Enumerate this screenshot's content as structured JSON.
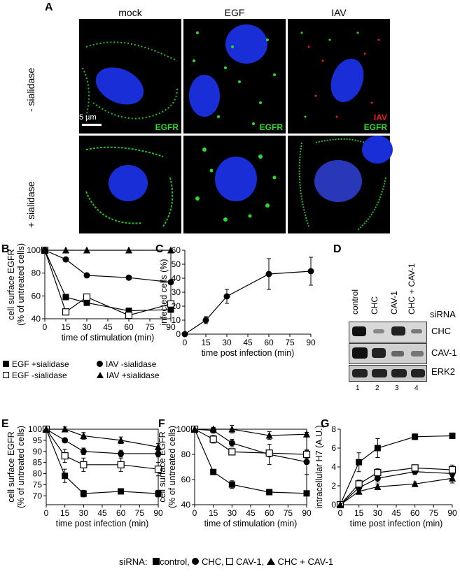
{
  "panel_a": {
    "letter": "A",
    "columns": [
      "mock",
      "EGF",
      "IAV"
    ],
    "rows": [
      "- sialidase",
      "+ sialidase"
    ],
    "scale_bar": "5 µm",
    "tags": {
      "egfr": "EGFR",
      "iav": "IAV"
    }
  },
  "panel_b": {
    "letter": "B"
  },
  "panel_c": {
    "letter": "C"
  },
  "panel_d": {
    "letter": "D",
    "lanes": [
      "control",
      "CHC",
      "CAV-1",
      "CHC + CAV-1"
    ],
    "lane_numbers": [
      "1",
      "2",
      "3",
      "4"
    ],
    "sirna_label": "siRNA",
    "bands": [
      "CHC",
      "CAV-1",
      "ERK2"
    ]
  },
  "panel_e": {
    "letter": "E"
  },
  "panel_f": {
    "letter": "F"
  },
  "panel_g": {
    "letter": "G"
  },
  "legend_b": {
    "egf_plus": "EGF +sialidase",
    "egf_minus": "EGF -sialidase",
    "iav_minus": "IAV -sialidase",
    "iav_plus": "IAV +sialidase"
  },
  "bottom_legend": {
    "prefix": "siRNA:",
    "control": "control,",
    "chc": "CHC,",
    "cav": "CAV-1,",
    "both": "CHC + CAV-1"
  },
  "chart_data": [
    {
      "id": "B",
      "type": "line",
      "xlabel": "time of stimulation (min)",
      "ylabel": "cell surface EGFR (% of untreated cells)",
      "xticks": [
        0,
        15,
        30,
        45,
        60,
        75,
        90
      ],
      "yticks": [
        40,
        60,
        80,
        100
      ],
      "xlim": [
        0,
        90
      ],
      "ylim": [
        40,
        100
      ],
      "series": [
        {
          "name": "EGF +sialidase",
          "marker": "square-filled",
          "x": [
            0,
            15,
            30,
            60,
            90
          ],
          "y": [
            100,
            59,
            54,
            47,
            48
          ]
        },
        {
          "name": "EGF -sialidase",
          "marker": "square-open",
          "x": [
            0,
            15,
            30,
            60,
            90
          ],
          "y": [
            100,
            46,
            59,
            43,
            53
          ]
        },
        {
          "name": "IAV -sialidase",
          "marker": "circle-filled",
          "x": [
            0,
            15,
            30,
            60,
            90
          ],
          "y": [
            100,
            92,
            78,
            76,
            72
          ]
        },
        {
          "name": "IAV +sialidase",
          "marker": "triangle-filled",
          "x": [
            0,
            15,
            30,
            60,
            90
          ],
          "y": [
            100,
            100,
            100,
            100,
            100
          ]
        }
      ]
    },
    {
      "id": "C",
      "type": "line",
      "xlabel": "time post infection (min)",
      "ylabel": "infected cells (%)",
      "xticks": [
        0,
        15,
        30,
        45,
        60,
        75,
        90
      ],
      "yticks": [
        0,
        10,
        20,
        30,
        40,
        50,
        60
      ],
      "xlim": [
        0,
        90
      ],
      "ylim": [
        0,
        60
      ],
      "series": [
        {
          "marker": "circle-filled",
          "x": [
            0,
            15,
            30,
            60,
            90
          ],
          "y": [
            0,
            10,
            27,
            43,
            45
          ],
          "err": [
            0,
            2.5,
            5,
            11,
            10
          ]
        }
      ]
    },
    {
      "id": "E",
      "type": "line",
      "xlabel": "time post infection (min)",
      "ylabel": "cell surface EGFR (% of untreated cells)",
      "xticks": [
        0,
        15,
        30,
        45,
        60,
        75,
        90
      ],
      "yticks": [
        70,
        75,
        80,
        85,
        90,
        95,
        100
      ],
      "xlim": [
        0,
        90
      ],
      "ylim": [
        66,
        100
      ],
      "series": [
        {
          "name": "control",
          "marker": "square-filled",
          "x": [
            0,
            15,
            30,
            60,
            90
          ],
          "y": [
            100,
            79,
            71,
            72,
            71
          ],
          "err": [
            0,
            3,
            1.5,
            1,
            1.5
          ]
        },
        {
          "name": "CHC",
          "marker": "circle-filled",
          "x": [
            0,
            15,
            30,
            60,
            90
          ],
          "y": [
            100,
            95,
            90,
            89,
            89
          ],
          "err": [
            0,
            1,
            1.5,
            1.5,
            1.5
          ]
        },
        {
          "name": "CAV-1",
          "marker": "square-open",
          "x": [
            0,
            15,
            30,
            60,
            90
          ],
          "y": [
            100,
            88,
            84,
            84,
            82
          ],
          "err": [
            0,
            3,
            3,
            3,
            3
          ]
        },
        {
          "name": "CHC + CAV-1",
          "marker": "triangle-filled",
          "x": [
            0,
            15,
            30,
            60,
            90
          ],
          "y": [
            100,
            100,
            97,
            95,
            92
          ],
          "err": [
            0,
            1,
            1.5,
            1.5,
            1.5
          ]
        }
      ]
    },
    {
      "id": "F",
      "type": "line",
      "xlabel": "time of stimulation (min)",
      "ylabel": "cell surface EGFR (% of untreated cells)",
      "xticks": [
        0,
        15,
        30,
        45,
        60,
        75,
        90
      ],
      "yticks": [
        40,
        60,
        80,
        100
      ],
      "xlim": [
        0,
        90
      ],
      "ylim": [
        40,
        100
      ],
      "series": [
        {
          "name": "control",
          "marker": "square-filled",
          "x": [
            0,
            15,
            30,
            60,
            90
          ],
          "y": [
            100,
            66,
            56,
            50,
            49
          ],
          "err": [
            0,
            1,
            3,
            1,
            2
          ]
        },
        {
          "name": "CHC",
          "marker": "circle-filled",
          "x": [
            0,
            15,
            30,
            60,
            90
          ],
          "y": [
            100,
            99,
            89,
            80,
            74
          ],
          "err": [
            0,
            2,
            3,
            8,
            10
          ]
        },
        {
          "name": "CAV-1",
          "marker": "square-open",
          "x": [
            0,
            15,
            30,
            60,
            90
          ],
          "y": [
            100,
            92,
            82,
            81,
            80
          ],
          "err": [
            0,
            3,
            1,
            2,
            3
          ]
        },
        {
          "name": "CHC + CAV-1",
          "marker": "triangle-filled",
          "x": [
            0,
            15,
            30,
            60,
            90
          ],
          "y": [
            100,
            100,
            100,
            95,
            96
          ],
          "err": [
            0,
            1.5,
            3,
            3,
            1.5
          ]
        }
      ]
    },
    {
      "id": "G",
      "type": "line",
      "xlabel": "time post infection (min)",
      "ylabel": "intracellular H7 (A.U.)",
      "xticks": [
        0,
        15,
        30,
        45,
        60,
        75,
        90
      ],
      "yticks": [
        0,
        2,
        4,
        6,
        8
      ],
      "xlim": [
        0,
        90
      ],
      "ylim": [
        0,
        8
      ],
      "series": [
        {
          "name": "control",
          "marker": "square-filled",
          "x": [
            0,
            15,
            30,
            60,
            90
          ],
          "y": [
            0,
            4.5,
            6,
            7.2,
            7.3
          ],
          "err": [
            0,
            1,
            1,
            0.3,
            0.3
          ]
        },
        {
          "name": "CHC",
          "marker": "circle-filled",
          "x": [
            0,
            15,
            30,
            60,
            90
          ],
          "y": [
            0,
            1.8,
            2.8,
            3.5,
            3.3
          ],
          "err": [
            0,
            0.3,
            0.4,
            0.3,
            0.3
          ]
        },
        {
          "name": "CAV-1",
          "marker": "square-open",
          "x": [
            0,
            15,
            30,
            60,
            90
          ],
          "y": [
            0,
            2.2,
            3.4,
            3.9,
            3.7
          ],
          "err": [
            0,
            0.4,
            0.4,
            0.3,
            0.5
          ]
        },
        {
          "name": "CHC + CAV-1",
          "marker": "triangle-filled",
          "x": [
            0,
            15,
            30,
            60,
            90
          ],
          "y": [
            0,
            1.4,
            1.9,
            2.2,
            2.8
          ],
          "err": [
            0,
            0.3,
            0.3,
            0.2,
            0.5
          ]
        }
      ]
    }
  ]
}
